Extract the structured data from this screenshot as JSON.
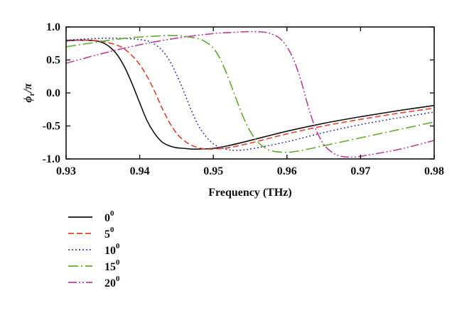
{
  "chart_data": {
    "type": "line",
    "xlabel": "Frequency (THz)",
    "ylabel": {
      "base": "ϕ",
      "sub": "r",
      "tail": "/π"
    },
    "xlim": [
      0.93,
      0.98
    ],
    "ylim": [
      -1.0,
      1.0
    ],
    "xticks": [
      0.93,
      0.94,
      0.95,
      0.96,
      0.97,
      0.98
    ],
    "xtick_labels": [
      "0.93",
      "0.94",
      "0.95",
      "0.96",
      "0.97",
      "0.98"
    ],
    "yticks": [
      -1.0,
      -0.5,
      0.0,
      0.5,
      1.0
    ],
    "ytick_labels": [
      "-1.0",
      "-0.5",
      "0.0",
      "0.5",
      "1.0"
    ],
    "grid": false,
    "legend_position": "below-left",
    "series": [
      {
        "name": "0",
        "name_sup": "0",
        "color": "#111111",
        "dash": "solid",
        "x": [
          0.93,
          0.932,
          0.934,
          0.935,
          0.936,
          0.937,
          0.938,
          0.939,
          0.94,
          0.941,
          0.942,
          0.943,
          0.944,
          0.945,
          0.946,
          0.947,
          0.948,
          0.95,
          0.952,
          0.955,
          0.96,
          0.965,
          0.97,
          0.975,
          0.98
        ],
        "y": [
          0.79,
          0.8,
          0.79,
          0.76,
          0.69,
          0.57,
          0.38,
          0.13,
          -0.15,
          -0.42,
          -0.61,
          -0.74,
          -0.8,
          -0.83,
          -0.84,
          -0.85,
          -0.85,
          -0.84,
          -0.8,
          -0.72,
          -0.58,
          -0.46,
          -0.36,
          -0.27,
          -0.19
        ]
      },
      {
        "name": "5",
        "name_sup": "0",
        "color": "#e8402a",
        "dash": "8,4",
        "x": [
          0.93,
          0.933,
          0.935,
          0.937,
          0.938,
          0.939,
          0.94,
          0.941,
          0.942,
          0.943,
          0.944,
          0.945,
          0.946,
          0.947,
          0.948,
          0.949,
          0.95,
          0.952,
          0.955,
          0.96,
          0.965,
          0.97,
          0.975,
          0.98
        ],
        "y": [
          0.8,
          0.8,
          0.78,
          0.72,
          0.66,
          0.56,
          0.43,
          0.25,
          0.03,
          -0.22,
          -0.44,
          -0.61,
          -0.72,
          -0.79,
          -0.83,
          -0.85,
          -0.85,
          -0.83,
          -0.76,
          -0.62,
          -0.5,
          -0.4,
          -0.31,
          -0.23
        ]
      },
      {
        "name": "10",
        "name_sup": "0",
        "color": "#4343b0",
        "dash": "2,3",
        "x": [
          0.93,
          0.933,
          0.936,
          0.939,
          0.941,
          0.942,
          0.943,
          0.944,
          0.945,
          0.946,
          0.947,
          0.948,
          0.949,
          0.95,
          0.951,
          0.952,
          0.953,
          0.955,
          0.96,
          0.965,
          0.97,
          0.975,
          0.98
        ],
        "y": [
          0.8,
          0.82,
          0.83,
          0.82,
          0.79,
          0.74,
          0.65,
          0.5,
          0.28,
          0.02,
          -0.26,
          -0.5,
          -0.66,
          -0.77,
          -0.83,
          -0.86,
          -0.87,
          -0.85,
          -0.74,
          -0.6,
          -0.48,
          -0.38,
          -0.29
        ]
      },
      {
        "name": "15",
        "name_sup": "0",
        "color": "#5fae28",
        "dash": "14,4,2,4",
        "x": [
          0.93,
          0.933,
          0.936,
          0.939,
          0.942,
          0.944,
          0.946,
          0.948,
          0.949,
          0.95,
          0.951,
          0.952,
          0.953,
          0.954,
          0.955,
          0.956,
          0.957,
          0.958,
          0.96,
          0.962,
          0.965,
          0.97,
          0.975,
          0.98
        ],
        "y": [
          0.7,
          0.75,
          0.8,
          0.84,
          0.86,
          0.87,
          0.86,
          0.82,
          0.77,
          0.68,
          0.5,
          0.24,
          -0.06,
          -0.35,
          -0.58,
          -0.74,
          -0.83,
          -0.88,
          -0.9,
          -0.87,
          -0.8,
          -0.68,
          -0.56,
          -0.44
        ]
      },
      {
        "name": "20",
        "name_sup": "0",
        "color": "#c23d9b",
        "dash": "12,3,2,3,2,3",
        "x": [
          0.93,
          0.935,
          0.94,
          0.945,
          0.95,
          0.953,
          0.955,
          0.957,
          0.958,
          0.959,
          0.96,
          0.961,
          0.962,
          0.963,
          0.964,
          0.965,
          0.966,
          0.967,
          0.968,
          0.969,
          0.97,
          0.975,
          0.98
        ],
        "y": [
          0.45,
          0.6,
          0.73,
          0.83,
          0.9,
          0.92,
          0.93,
          0.92,
          0.89,
          0.83,
          0.7,
          0.48,
          0.15,
          -0.25,
          -0.57,
          -0.78,
          -0.89,
          -0.95,
          -0.97,
          -0.97,
          -0.96,
          -0.86,
          -0.72
        ]
      }
    ]
  }
}
